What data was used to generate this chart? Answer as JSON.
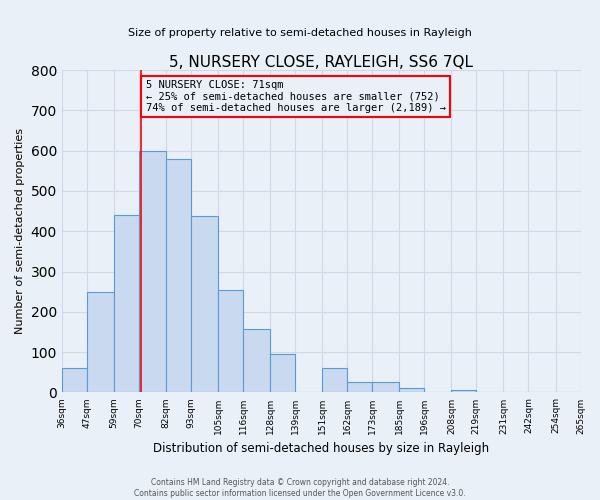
{
  "title": "5, NURSERY CLOSE, RAYLEIGH, SS6 7QL",
  "subtitle": "Size of property relative to semi-detached houses in Rayleigh",
  "xlabel": "Distribution of semi-detached houses by size in Rayleigh",
  "ylabel": "Number of semi-detached properties",
  "bar_edges": [
    36,
    47,
    59,
    70,
    82,
    93,
    105,
    116,
    128,
    139,
    151,
    162,
    173,
    185,
    196,
    208,
    219,
    231,
    242,
    254,
    265
  ],
  "bar_heights": [
    60,
    248,
    440,
    600,
    578,
    438,
    254,
    158,
    96,
    0,
    60,
    25,
    25,
    10,
    0,
    5,
    0,
    0,
    0,
    0
  ],
  "bar_color": "#c9d9f0",
  "bar_edge_color": "#5b9bd5",
  "property_line_x": 71,
  "annotation_text_line1": "5 NURSERY CLOSE: 71sqm",
  "annotation_text_line2": "← 25% of semi-detached houses are smaller (752)",
  "annotation_text_line3": "74% of semi-detached houses are larger (2,189) →",
  "ylim": [
    0,
    800
  ],
  "yticks": [
    0,
    100,
    200,
    300,
    400,
    500,
    600,
    700,
    800
  ],
  "tick_labels": [
    "36sqm",
    "47sqm",
    "59sqm",
    "70sqm",
    "82sqm",
    "93sqm",
    "105sqm",
    "116sqm",
    "128sqm",
    "139sqm",
    "151sqm",
    "162sqm",
    "173sqm",
    "185sqm",
    "196sqm",
    "208sqm",
    "219sqm",
    "231sqm",
    "242sqm",
    "254sqm",
    "265sqm"
  ],
  "footer1": "Contains HM Land Registry data © Crown copyright and database right 2024.",
  "footer2": "Contains public sector information licensed under the Open Government Licence v3.0.",
  "grid_color": "#d0d8e8",
  "bg_color": "#eaf0f8",
  "title_fontsize": 11,
  "subtitle_fontsize": 8,
  "ylabel_fontsize": 8,
  "xlabel_fontsize": 8.5,
  "tick_fontsize": 6.5,
  "annotation_fontsize": 7.5,
  "footer_fontsize": 5.5
}
